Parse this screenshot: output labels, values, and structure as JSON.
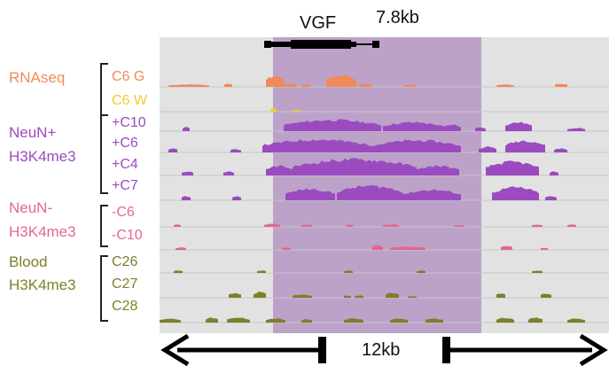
{
  "gene": {
    "name": "VGF",
    "length_label": "7.8kb"
  },
  "scale": {
    "label": "12kb"
  },
  "colors": {
    "rnaseq_g": "#f08a5a",
    "rnaseq_w": "#f2cd2a",
    "neun_pos": "#9b4bbf",
    "neun_neg": "#e2688f",
    "blood": "#7f7f2a",
    "highlight": "#bca2c8",
    "panel_bg": "#e2e2e2"
  },
  "groups": [
    {
      "label_lines": [
        "RNAseq"
      ],
      "color_key": "rnaseq_g",
      "tracks": [
        {
          "label": "C6 G",
          "color_key": "rnaseq_g"
        },
        {
          "label": "C6 W",
          "color_key": "rnaseq_w"
        }
      ]
    },
    {
      "label_lines": [
        "NeuN+",
        "H3K4me3"
      ],
      "color_key": "neun_pos",
      "tracks": [
        {
          "label": "+C10",
          "color_key": "neun_pos"
        },
        {
          "label": "+C6",
          "color_key": "neun_pos"
        },
        {
          "label": "+C4",
          "color_key": "neun_pos"
        },
        {
          "label": "+C7",
          "color_key": "neun_pos"
        }
      ]
    },
    {
      "label_lines": [
        "NeuN-",
        "H3K4me3"
      ],
      "color_key": "neun_neg",
      "tracks": [
        {
          "label": "-C6",
          "color_key": "neun_neg"
        },
        {
          "label": "-C10",
          "color_key": "neun_neg"
        }
      ]
    },
    {
      "label_lines": [
        "Blood",
        "H3K4me3"
      ],
      "color_key": "blood",
      "tracks": [
        {
          "label": "C26",
          "color_key": "blood"
        },
        {
          "label": "C27",
          "color_key": "blood"
        },
        {
          "label": "C28",
          "color_key": "blood"
        }
      ]
    }
  ]
}
